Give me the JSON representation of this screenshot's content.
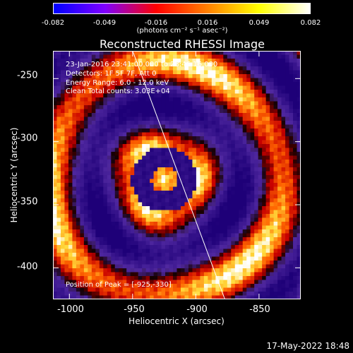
{
  "colorbar": {
    "ticks": [
      "-0.082",
      "-0.049",
      "-0.016",
      "0.016",
      "0.049",
      "0.082"
    ],
    "units": "(photons cm⁻² s⁻¹ asec⁻²)",
    "colors": [
      "#0000ff",
      "#8000ff",
      "#ff0000",
      "#ff8000",
      "#ffff00",
      "#ffffff"
    ]
  },
  "info": {
    "time": "23-Jan-2016 23:41:00.000 to 23:46:16.000",
    "detectors": "Detectors: 1F 5F 7F, Att 0",
    "energy": "Energy Range: 6.0 - 12.0 keV",
    "clean": "Clean     Total counts: 3.03E+04",
    "peak": "Position of Peak = [-925,-330]"
  },
  "timestamp": "17-May-2022 18:48",
  "chart_data": {
    "type": "heatmap",
    "title": "Reconstructed RHESSI Image",
    "xlabel": "Heliocentric X (arcsec)",
    "ylabel": "Heliocentric Y (arcsec)",
    "xlim": [
      -1013,
      -817
    ],
    "ylim": [
      -425,
      -228
    ],
    "xticks": [
      "-1000",
      "-950",
      "-900",
      "-850"
    ],
    "yticks": [
      "-250",
      "-300",
      "-350",
      "-400"
    ],
    "xtick_values": [
      -1000,
      -950,
      -900,
      -850
    ],
    "ytick_values": [
      -250,
      -300,
      -350,
      -400
    ],
    "peak": {
      "x": -925,
      "y": -330
    },
    "limb_line": [
      [
        -950,
        -228
      ],
      [
        -877,
        -425
      ]
    ]
  }
}
